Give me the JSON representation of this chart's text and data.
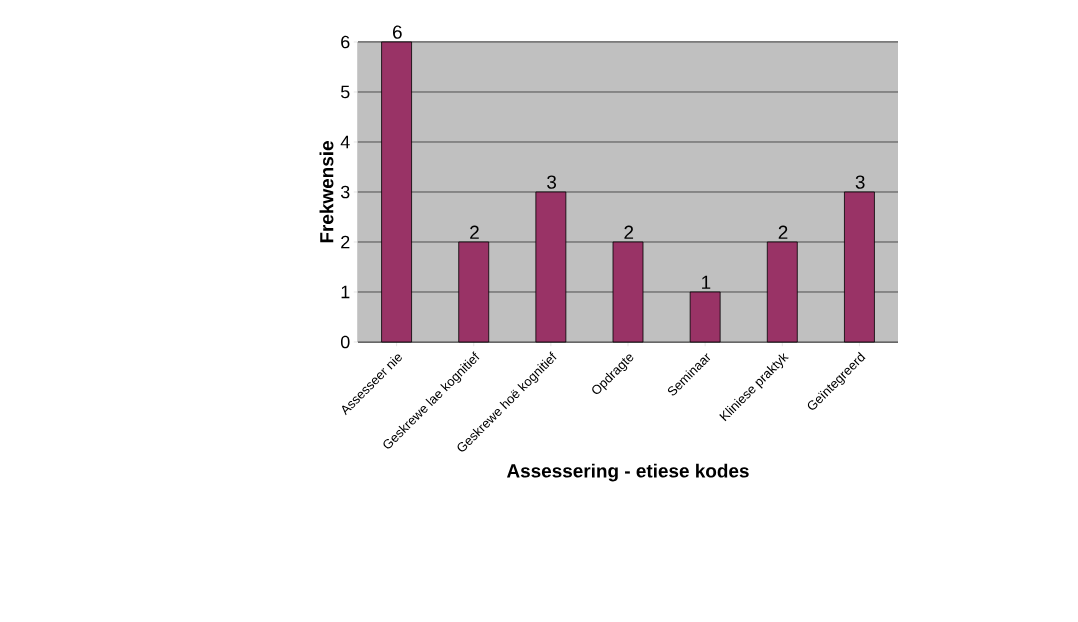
{
  "chart_data": {
    "type": "bar",
    "xlabel": "Assessering - etiese kodes",
    "ylabel": "Frekwensie",
    "categories": [
      "Assesseer nie",
      "Geskrewe lae kognitief",
      "Geskrewe hoë kognitief",
      "Opdragte",
      "Seminaar",
      "Kliniese praktyk",
      "Geïntegreerd"
    ],
    "values": [
      6,
      2,
      3,
      2,
      1,
      2,
      3
    ],
    "color": "#993366",
    "data_labels": true,
    "ylim": [
      0,
      6
    ],
    "yticks": [
      0,
      1,
      2,
      3,
      4,
      5,
      6
    ],
    "grid": "y"
  }
}
